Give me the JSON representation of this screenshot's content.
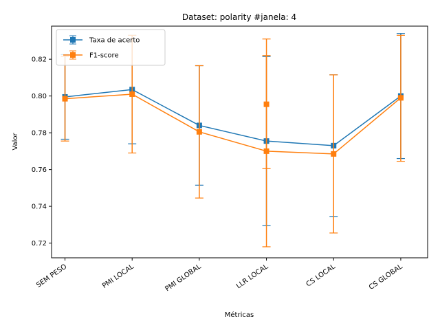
{
  "chart_data": {
    "type": "line",
    "title": "Dataset: polarity #janela: 4",
    "xlabel": "Métricas",
    "ylabel": "Valor",
    "categories": [
      "SEM PESO",
      "PMI LOCAL",
      "PMI GLOBAL",
      "LLR LOCAL",
      "CS LOCAL",
      "CS GLOBAL"
    ],
    "ylim": [
      0.712,
      0.838
    ],
    "yticks": [
      0.72,
      0.74,
      0.76,
      0.78,
      0.8,
      0.82
    ],
    "ytick_labels": [
      "0.72",
      "0.74",
      "0.76",
      "0.78",
      "0.80",
      "0.82"
    ],
    "grid": false,
    "legend_position": "top-left",
    "series": [
      {
        "name": "Taxa de acerto",
        "color": "#1f77b4",
        "marker": "square",
        "values": [
          0.7995,
          0.8035,
          0.784,
          0.7755,
          0.773,
          0.8
        ],
        "err_low": [
          0.7765,
          0.774,
          0.7515,
          0.7295,
          0.7345,
          0.766
        ],
        "err_high": [
          0.8225,
          0.833,
          0.8165,
          0.8215,
          0.8115,
          0.834
        ]
      },
      {
        "name": "F1-score",
        "color": "#ff7f0e",
        "marker": "square",
        "values": [
          0.7985,
          0.801,
          0.7805,
          0.77,
          0.7685,
          0.799
        ],
        "err_low": [
          0.7755,
          0.769,
          0.7445,
          0.718,
          0.7255,
          0.7645
        ],
        "err_high": [
          0.8215,
          0.833,
          0.8165,
          0.822,
          0.8115,
          0.833
        ]
      },
      {
        "name": "",
        "color": "#ff7f0e",
        "marker": "square",
        "values": [
          null,
          null,
          null,
          0.7955,
          null,
          null
        ],
        "err_low": [
          null,
          null,
          null,
          0.7605,
          null,
          null
        ],
        "err_high": [
          null,
          null,
          null,
          0.831,
          null,
          null
        ]
      }
    ]
  }
}
